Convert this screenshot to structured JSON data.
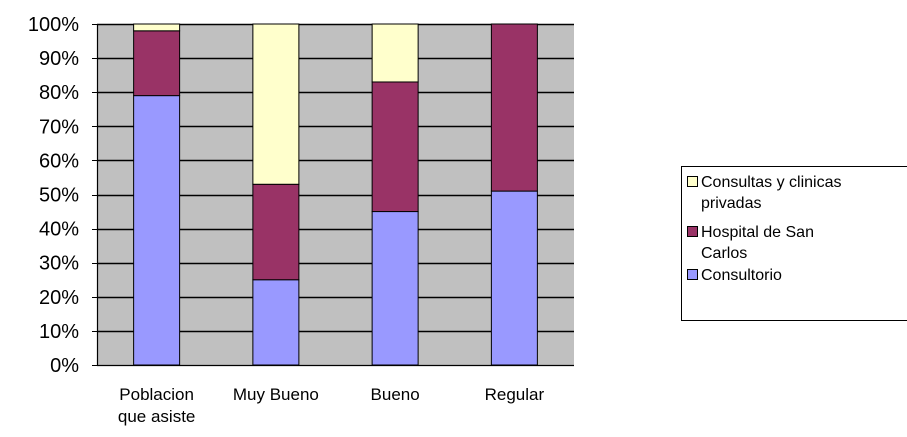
{
  "chart_data": {
    "type": "bar",
    "stacked": true,
    "normalized_percent": true,
    "categories": [
      "Poblacion que asiste",
      "Muy Bueno",
      "Bueno",
      "Regular"
    ],
    "category_lines": [
      [
        "Poblacion",
        "que asiste"
      ],
      [
        "Muy Bueno"
      ],
      [
        "Bueno"
      ],
      [
        "Regular"
      ]
    ],
    "series": [
      {
        "name": "Consultorio",
        "values": [
          79,
          25,
          45,
          51
        ],
        "color": "#9999ff"
      },
      {
        "name": "Hospital de San Carlos",
        "values": [
          19,
          28,
          38,
          49
        ],
        "color": "#993366"
      },
      {
        "name": "Consultas y clinicas privadas",
        "values": [
          2,
          47,
          17,
          0
        ],
        "color": "#ffffcc"
      }
    ],
    "legend_entries": [
      {
        "series": "Consultas y clinicas privadas",
        "lines": [
          "Consultas y clinicas",
          "privadas"
        ]
      },
      {
        "series": "Hospital de San Carlos",
        "lines": [
          "Hospital de San",
          "Carlos"
        ]
      },
      {
        "series": "Consultorio",
        "lines": [
          "Consultorio"
        ]
      }
    ],
    "yticks": [
      "0%",
      "10%",
      "20%",
      "30%",
      "40%",
      "50%",
      "60%",
      "70%",
      "80%",
      "90%",
      "100%"
    ],
    "ylim": [
      0,
      100
    ],
    "grid": true,
    "plot_background": "#c0c0c0",
    "legend_position": "right",
    "title": "",
    "xlabel": "",
    "ylabel": ""
  }
}
